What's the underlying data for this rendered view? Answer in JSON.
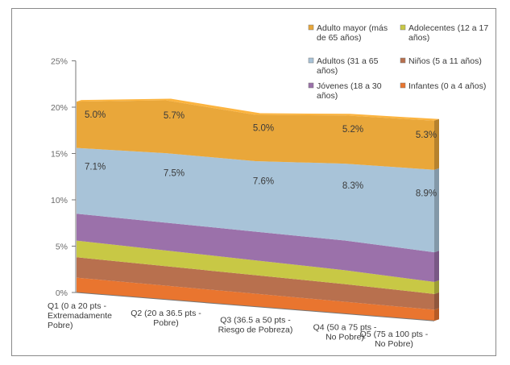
{
  "chart_data": {
    "type": "area",
    "title": "",
    "xlabel": "",
    "ylabel": "",
    "ylim": [
      0,
      25
    ],
    "yticks": [
      "0%",
      "5%",
      "10%",
      "15%",
      "20%",
      "25%"
    ],
    "categories": [
      "Q1 (0 a 20 pts - Extremadamente Pobre)",
      "Q2 (20 a 36.5 pts - Pobre)",
      "Q3 (36.5 a 50 pts - Riesgo de Pobreza)",
      "Q4 (50 a 75 pts - No Pobre)",
      "Q5 (75 a 100 pts - No Pobre)"
    ],
    "category_lines": [
      [
        "Q1 (0 a 20 pts -",
        "Extremadamente",
        "Pobre)"
      ],
      [
        "Q2 (20 a 36.5 pts -",
        "Pobre)"
      ],
      [
        "Q3 (36.5 a 50 pts -",
        "Riesgo de Pobreza)"
      ],
      [
        "Q4 (50 a 75 pts -",
        "No Pobre)"
      ],
      [
        "Q5 (75 a 100 pts -",
        "No Pobre)"
      ]
    ],
    "series": [
      {
        "name": "Infantes (0 a 4 años)",
        "color": "#e9752f",
        "values": [
          1.6,
          1.5,
          1.4,
          1.3,
          1.2
        ]
      },
      {
        "name": "Niños (5 a 11 años)",
        "color": "#b8704e",
        "values": [
          2.2,
          2.1,
          2.0,
          1.9,
          1.7
        ]
      },
      {
        "name": "Adolecentes (12 a 17 años)",
        "color": "#c8c845",
        "values": [
          1.8,
          1.7,
          1.6,
          1.5,
          1.3
        ]
      },
      {
        "name": "Jóvenes (18 a 30 años)",
        "color": "#9b71aa",
        "values": [
          2.9,
          3.0,
          3.1,
          3.2,
          3.2
        ]
      },
      {
        "name": "Adultos (31 a 65 años)",
        "color": "#a8c3d8",
        "values": [
          7.1,
          7.5,
          7.6,
          8.3,
          8.9
        ]
      },
      {
        "name": "Adulto mayor (más de 65 años)",
        "color": "#e9a73a",
        "values": [
          5.0,
          5.7,
          5.0,
          5.2,
          5.3
        ]
      }
    ],
    "data_labels": [
      {
        "series": 5,
        "texts": [
          "5.0%",
          "5.7%",
          "5.0%",
          "5.2%",
          "5.3%"
        ]
      },
      {
        "series": 4,
        "texts": [
          "7.1%",
          "7.5%",
          "7.6%",
          "8.3%",
          "8.9%"
        ]
      }
    ],
    "legend": {
      "placement": "top-right",
      "items": [
        {
          "lines": [
            "Adulto mayor (más",
            "de 65 años)"
          ],
          "color": "#e9a73a"
        },
        {
          "lines": [
            "Adolecentes (12 a 17",
            "años)"
          ],
          "color": "#c8c845"
        },
        {
          "lines": [
            "Adultos (31 a 65",
            "años)"
          ],
          "color": "#a8c3d8"
        },
        {
          "lines": [
            "Niños (5 a 11 años)"
          ],
          "color": "#b8704e"
        },
        {
          "lines": [
            "Jóvenes (18 a 30",
            "años)"
          ],
          "color": "#9b71aa"
        },
        {
          "lines": [
            "Infantes (0 a 4 años)"
          ],
          "color": "#e9752f"
        }
      ]
    },
    "grid": false
  }
}
